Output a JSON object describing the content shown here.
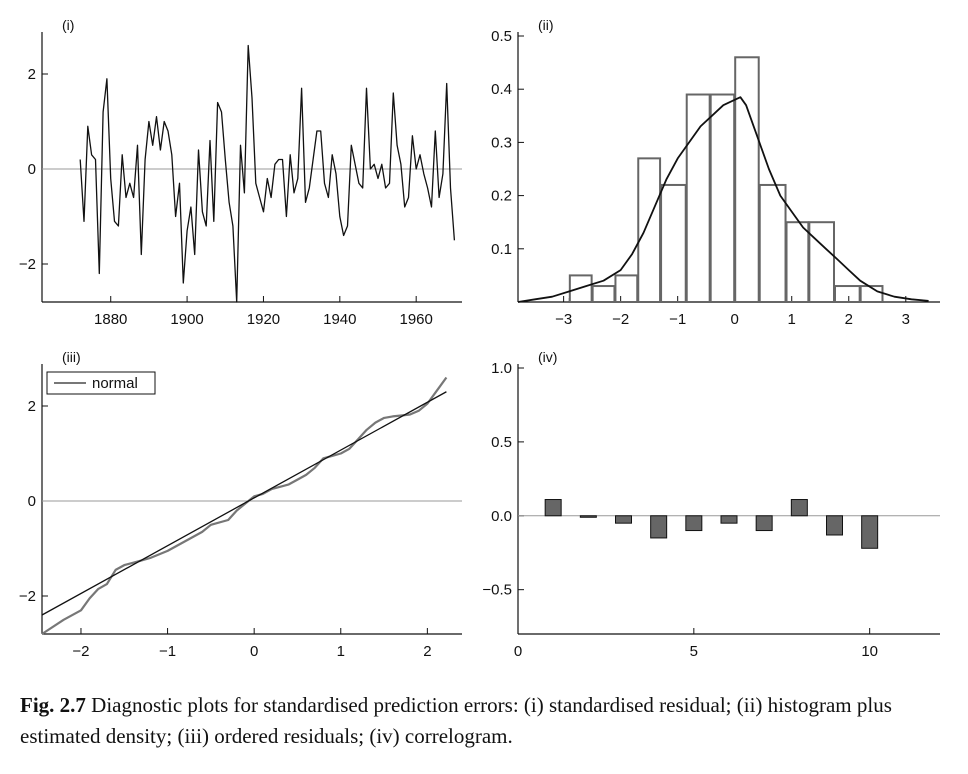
{
  "caption": {
    "label": "Fig. 2.7",
    "text": "Diagnostic plots for standardised prediction errors: (i) standardised residual; (ii) histogram plus estimated density; (iii) ordered residuals; (iv) correlogram."
  },
  "chart_data": [
    {
      "panel": "(i)",
      "type": "line",
      "xlim": [
        1862,
        1972
      ],
      "ylim": [
        -2.8,
        2.8
      ],
      "xticks": [
        1880,
        1900,
        1920,
        1940,
        1960
      ],
      "yticks": [
        -2,
        0,
        2
      ],
      "xtick_labels": [
        "1880",
        "1900",
        "1920",
        "1940",
        "1960"
      ],
      "ytick_labels": [
        "−2",
        "0",
        "2"
      ],
      "reference_line_y": 0,
      "series": [
        {
          "x": [
            1872,
            1873,
            1874,
            1875,
            1876,
            1877,
            1878,
            1879,
            1880,
            1881,
            1882,
            1883,
            1884,
            1885,
            1886,
            1887,
            1888,
            1889,
            1890,
            1891,
            1892,
            1893,
            1894,
            1895,
            1896,
            1897,
            1898,
            1899,
            1900,
            1901,
            1902,
            1903,
            1904,
            1905,
            1906,
            1907,
            1908,
            1909,
            1910,
            1911,
            1912,
            1913,
            1914,
            1915,
            1916,
            1917,
            1918,
            1919,
            1920,
            1921,
            1922,
            1923,
            1924,
            1925,
            1926,
            1927,
            1928,
            1929,
            1930,
            1931,
            1932,
            1933,
            1934,
            1935,
            1936,
            1937,
            1938,
            1939,
            1940,
            1941,
            1942,
            1943,
            1944,
            1945,
            1946,
            1947,
            1948,
            1949,
            1950,
            1951,
            1952,
            1953,
            1954,
            1955,
            1956,
            1957,
            1958,
            1959,
            1960,
            1961,
            1962,
            1963,
            1964,
            1965,
            1966,
            1967,
            1968,
            1969,
            1970
          ],
          "values": [
            0.2,
            -1.1,
            0.9,
            0.3,
            0.2,
            -2.2,
            1.2,
            1.9,
            -0.2,
            -1.1,
            -1.2,
            0.3,
            -0.6,
            -0.3,
            -0.6,
            0.5,
            -1.8,
            0.2,
            1.0,
            0.5,
            1.1,
            0.4,
            1.0,
            0.8,
            0.3,
            -1.0,
            -0.3,
            -2.4,
            -1.3,
            -0.8,
            -1.8,
            0.4,
            -0.9,
            -1.2,
            0.6,
            -1.1,
            1.4,
            1.2,
            0.2,
            -0.7,
            -1.2,
            -2.8,
            0.5,
            -0.5,
            2.6,
            1.5,
            -0.3,
            -0.6,
            -0.9,
            -0.2,
            -0.6,
            0.1,
            0.2,
            0.2,
            -1.0,
            0.3,
            -0.5,
            -0.2,
            1.7,
            -0.7,
            -0.4,
            0.2,
            0.8,
            0.8,
            -0.3,
            -0.6,
            0.3,
            -0.1,
            -1.0,
            -1.4,
            -1.2,
            0.5,
            0.1,
            -0.3,
            -0.4,
            1.7,
            0.0,
            0.1,
            -0.2,
            0.1,
            -0.4,
            -0.3,
            1.6,
            0.5,
            0.1,
            -0.8,
            -0.6,
            0.7,
            0.0,
            0.3,
            -0.1,
            -0.4,
            -0.8,
            0.8,
            -0.6,
            -0.1,
            1.8,
            -0.4,
            -1.5
          ],
          "color": "#111111"
        }
      ]
    },
    {
      "panel": "(ii)",
      "type": "bar",
      "xlim": [
        -3.8,
        3.6
      ],
      "ylim": [
        0,
        0.5
      ],
      "xticks": [
        -3,
        -2,
        -1,
        0,
        1,
        2,
        3
      ],
      "yticks": [
        0.1,
        0.2,
        0.3,
        0.4,
        0.5
      ],
      "xtick_labels": [
        "−3",
        "−2",
        "−1",
        "0",
        "1",
        "2",
        "3"
      ],
      "ytick_labels": [
        "0.1",
        "0.2",
        "0.3",
        "0.4",
        "0.5"
      ],
      "bin_edges": [
        -2.9,
        -2.5,
        -2.1,
        -1.7,
        -1.3,
        -0.85,
        -0.43,
        0.0,
        0.43,
        0.9,
        1.3,
        1.75,
        2.2,
        2.6
      ],
      "values": [
        0.05,
        0.03,
        0.05,
        0.27,
        0.22,
        0.39,
        0.39,
        0.46,
        0.22,
        0.15,
        0.15,
        0.03,
        0.03
      ],
      "density": {
        "x": [
          -3.8,
          -3.5,
          -3.2,
          -2.9,
          -2.6,
          -2.3,
          -2.0,
          -1.8,
          -1.6,
          -1.4,
          -1.2,
          -1.0,
          -0.8,
          -0.6,
          -0.4,
          -0.2,
          0.0,
          0.1,
          0.2,
          0.4,
          0.6,
          0.8,
          1.0,
          1.2,
          1.4,
          1.6,
          1.8,
          2.0,
          2.2,
          2.5,
          2.8,
          3.1,
          3.4
        ],
        "values": [
          0.0,
          0.005,
          0.01,
          0.02,
          0.03,
          0.04,
          0.06,
          0.09,
          0.13,
          0.18,
          0.23,
          0.27,
          0.3,
          0.33,
          0.35,
          0.37,
          0.38,
          0.385,
          0.37,
          0.31,
          0.25,
          0.2,
          0.17,
          0.14,
          0.12,
          0.1,
          0.08,
          0.06,
          0.04,
          0.02,
          0.01,
          0.005,
          0.002
        ]
      },
      "bar_color": "#666666",
      "line_color": "#111111"
    },
    {
      "panel": "(iii)",
      "type": "line",
      "xlim": [
        -2.45,
        2.4
      ],
      "ylim": [
        -2.8,
        2.8
      ],
      "xticks": [
        -2,
        -1,
        0,
        1,
        2
      ],
      "yticks": [
        -2,
        0,
        2
      ],
      "xtick_labels": [
        "−2",
        "−1",
        "0",
        "1",
        "2"
      ],
      "ytick_labels": [
        "−2",
        "0",
        "2"
      ],
      "reference_line_y": 0,
      "legend": {
        "label": "normal",
        "position": "top-left"
      },
      "series": [
        {
          "x": [
            -2.45,
            -2.2,
            -2.0,
            -1.9,
            -1.8,
            -1.7,
            -1.6,
            -1.5,
            -1.4,
            -1.3,
            -1.2,
            -1.0,
            -0.8,
            -0.6,
            -0.5,
            -0.3,
            -0.2,
            -0.1,
            0.0,
            0.1,
            0.2,
            0.3,
            0.4,
            0.5,
            0.6,
            0.7,
            0.8,
            0.9,
            1.0,
            1.1,
            1.2,
            1.3,
            1.4,
            1.5,
            1.6,
            1.7,
            1.8,
            1.9,
            2.0,
            2.1,
            2.22
          ],
          "values": [
            -2.8,
            -2.5,
            -2.3,
            -2.05,
            -1.85,
            -1.75,
            -1.45,
            -1.35,
            -1.3,
            -1.25,
            -1.2,
            -1.05,
            -0.85,
            -0.65,
            -0.5,
            -0.4,
            -0.2,
            -0.05,
            0.1,
            0.15,
            0.25,
            0.3,
            0.35,
            0.45,
            0.55,
            0.7,
            0.9,
            0.95,
            1.0,
            1.1,
            1.3,
            1.5,
            1.65,
            1.75,
            1.78,
            1.8,
            1.82,
            1.9,
            2.05,
            2.3,
            2.6
          ],
          "color": "#777777"
        },
        {
          "x": [
            -2.45,
            2.22
          ],
          "values": [
            -2.4,
            2.3
          ],
          "color": "#111111"
        }
      ]
    },
    {
      "panel": "(iv)",
      "type": "bar",
      "xlim": [
        0,
        12
      ],
      "ylim": [
        -0.8,
        1.0
      ],
      "xticks": [
        0,
        5,
        10
      ],
      "yticks": [
        -0.5,
        0.0,
        0.5,
        1.0
      ],
      "xtick_labels": [
        "0",
        "5",
        "10"
      ],
      "ytick_labels": [
        "−0.5",
        "0.0",
        "0.5",
        "1.0"
      ],
      "reference_line_y": 0,
      "categories": [
        1,
        2,
        3,
        4,
        5,
        6,
        7,
        8,
        9,
        10
      ],
      "values": [
        0.11,
        -0.01,
        -0.05,
        -0.15,
        -0.1,
        -0.05,
        -0.1,
        0.11,
        -0.13,
        -0.22
      ],
      "bar_color": "#666666"
    }
  ]
}
